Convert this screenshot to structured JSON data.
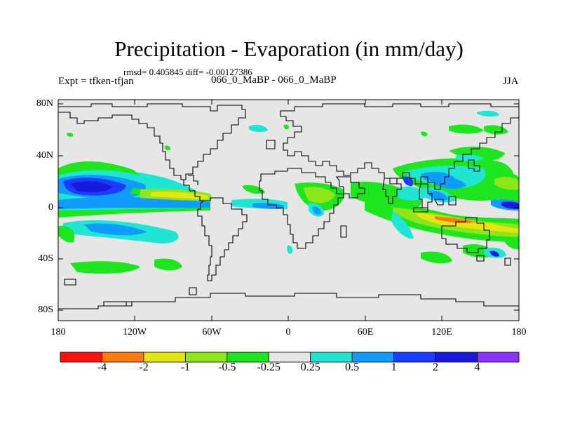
{
  "title": "Precipitation - Evaporation (in mm/day)",
  "stats": "rmsd= 0.405845 diff= -0.00127386",
  "expt": "Expt = tfken-tfjan",
  "subtitle": "066_0_MaBP - 066_0_MaBP",
  "season": "JJA",
  "lat_ticks": [
    "80N",
    "40N",
    "0",
    "40S",
    "80S"
  ],
  "lon_ticks": [
    "180",
    "120W",
    "60W",
    "0",
    "60E",
    "120E",
    "180"
  ],
  "colorbar": {
    "labels": [
      "-4",
      "-2",
      "-1",
      "-0.5",
      "-0.25",
      "0.25",
      "0.5",
      "1",
      "2",
      "4"
    ],
    "colors": [
      "#ff1010",
      "#ff7b10",
      "#e6e60f",
      "#8ce61a",
      "#1ee61e",
      "#e6e6e6",
      "#1ee6d2",
      "#0f9bff",
      "#1a3cff",
      "#1a1adc",
      "#8c32ff"
    ]
  }
}
